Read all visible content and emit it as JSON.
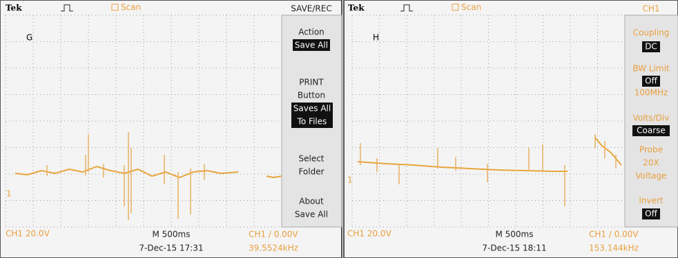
{
  "left": {
    "brand": "Tek",
    "mode": "Scan",
    "menu_title": "SAVE/REC",
    "label": "G",
    "marker": "1",
    "menu": [
      "Action",
      "Save All",
      "PRINT",
      "Button",
      "Saves All",
      "To Files",
      "Select",
      "Folder",
      "About",
      "Save All"
    ],
    "bottom": {
      "ch_scale": "CH1 20.0V",
      "timebase": "M 500ms",
      "date": "7-Dec-15 17:31",
      "trigger": "CH1 / 0.00V",
      "frequency": "39.5524kHz"
    }
  },
  "right": {
    "brand": "Tek",
    "mode": "Scan",
    "menu_title": "CH1",
    "label": "H",
    "marker": "1",
    "menu": [
      "Coupling",
      "DC",
      "BW Limit",
      "Off",
      "100MHz",
      "Volts/Div",
      "Coarse",
      "Probe",
      "20X",
      "Voltage",
      "Invert",
      "Off"
    ],
    "bottom": {
      "ch_scale": "CH1 20.0V",
      "timebase": "M 500ms",
      "date": "7-Dec-15 18:11",
      "trigger": "CH1 / 0.00V",
      "frequency": "153.144kHz"
    }
  }
}
